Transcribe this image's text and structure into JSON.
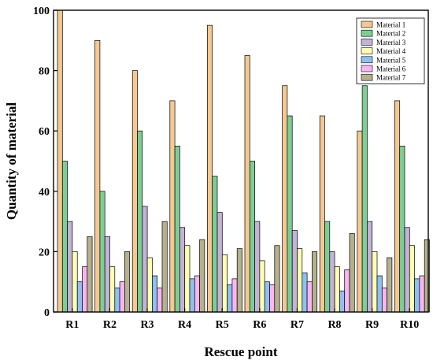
{
  "chart_data": {
    "type": "bar",
    "title": "",
    "xlabel": "Rescue point",
    "ylabel": "Quantity of material",
    "ylim": [
      0,
      100
    ],
    "yticks": [
      0,
      20,
      40,
      60,
      80,
      100
    ],
    "grid": false,
    "legend_position": "top-right",
    "categories": [
      "R1",
      "R2",
      "R3",
      "R4",
      "R5",
      "R6",
      "R7",
      "R8",
      "R9",
      "R10"
    ],
    "series": [
      {
        "name": "Material 1",
        "color": "#F5C892",
        "values": [
          100,
          90,
          80,
          70,
          95,
          85,
          75,
          65,
          60,
          70
        ]
      },
      {
        "name": "Material 2",
        "color": "#7DCE94",
        "values": [
          50,
          40,
          60,
          55,
          45,
          50,
          65,
          30,
          75,
          55
        ]
      },
      {
        "name": "Material 3",
        "color": "#C3B3D6",
        "values": [
          30,
          25,
          35,
          28,
          33,
          30,
          27,
          20,
          30,
          28
        ]
      },
      {
        "name": "Material 4",
        "color": "#FFFFB3",
        "values": [
          20,
          15,
          18,
          22,
          19,
          17,
          21,
          15,
          20,
          22
        ]
      },
      {
        "name": "Material 5",
        "color": "#8EC1F0",
        "values": [
          10,
          8,
          12,
          11,
          9,
          10,
          13,
          7,
          12,
          11
        ]
      },
      {
        "name": "Material 6",
        "color": "#F7B6F2",
        "values": [
          15,
          10,
          8,
          12,
          11,
          9,
          10,
          14,
          8,
          12
        ]
      },
      {
        "name": "Material 7",
        "color": "#B5B08E",
        "values": [
          25,
          20,
          30,
          24,
          21,
          22,
          20,
          26,
          18,
          24
        ]
      }
    ]
  }
}
